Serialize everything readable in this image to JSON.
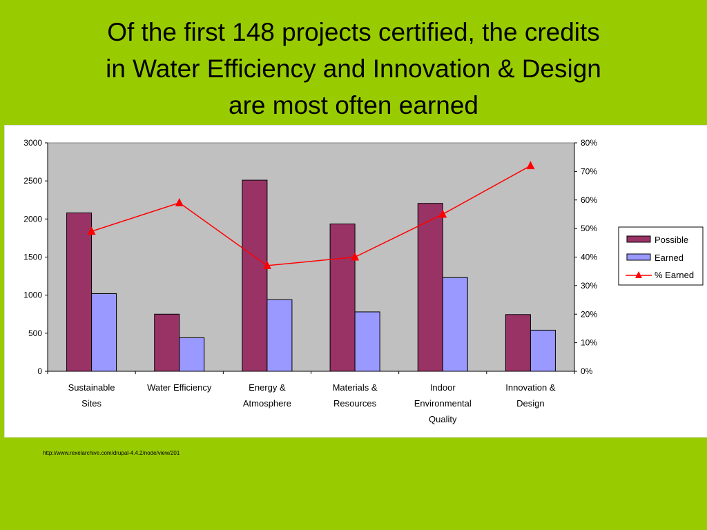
{
  "title": {
    "lines": [
      "Of the first 148 projects certified, the credits",
      "in Water Efficiency and Innovation & Design",
      "are most often earned"
    ]
  },
  "source": "http://www.rexelarchive.com/drupal-4.4.2/node/view/201",
  "colors": {
    "background": "#99cc00",
    "plot_area": "#c0c0c0",
    "possible": "#993366",
    "earned": "#9999ff",
    "pct_earned": "#ff0000"
  },
  "chart_data": {
    "type": "bar",
    "categories": [
      [
        "Sustainable",
        "Sites"
      ],
      [
        "Water Efficiency"
      ],
      [
        "Energy &",
        "Atmosphere"
      ],
      [
        "Materials &",
        "Resources"
      ],
      [
        "Indoor",
        "Environmental",
        "Quality"
      ],
      [
        "Innovation &",
        "Design"
      ]
    ],
    "series": [
      {
        "name": "Possible",
        "type": "bar",
        "axis": "left",
        "values": [
          2080,
          750,
          2510,
          1935,
          2205,
          745
        ]
      },
      {
        "name": "Earned",
        "type": "bar",
        "axis": "left",
        "values": [
          1020,
          440,
          940,
          780,
          1230,
          540
        ]
      },
      {
        "name": "% Earned",
        "type": "line",
        "axis": "right",
        "marker": "triangle",
        "values": [
          49,
          59,
          37,
          40,
          55,
          72
        ]
      }
    ],
    "y_left": {
      "min": 0,
      "max": 3000,
      "ticks": [
        "0",
        "500",
        "1000",
        "1500",
        "2000",
        "2500",
        "3000"
      ]
    },
    "y_right": {
      "min": 0,
      "max": 80,
      "ticks": [
        "0%",
        "10%",
        "20%",
        "30%",
        "40%",
        "50%",
        "60%",
        "70%",
        "80%"
      ]
    },
    "legend": {
      "position": "right",
      "entries": [
        "Possible",
        "Earned",
        "% Earned"
      ]
    },
    "grid": false
  }
}
